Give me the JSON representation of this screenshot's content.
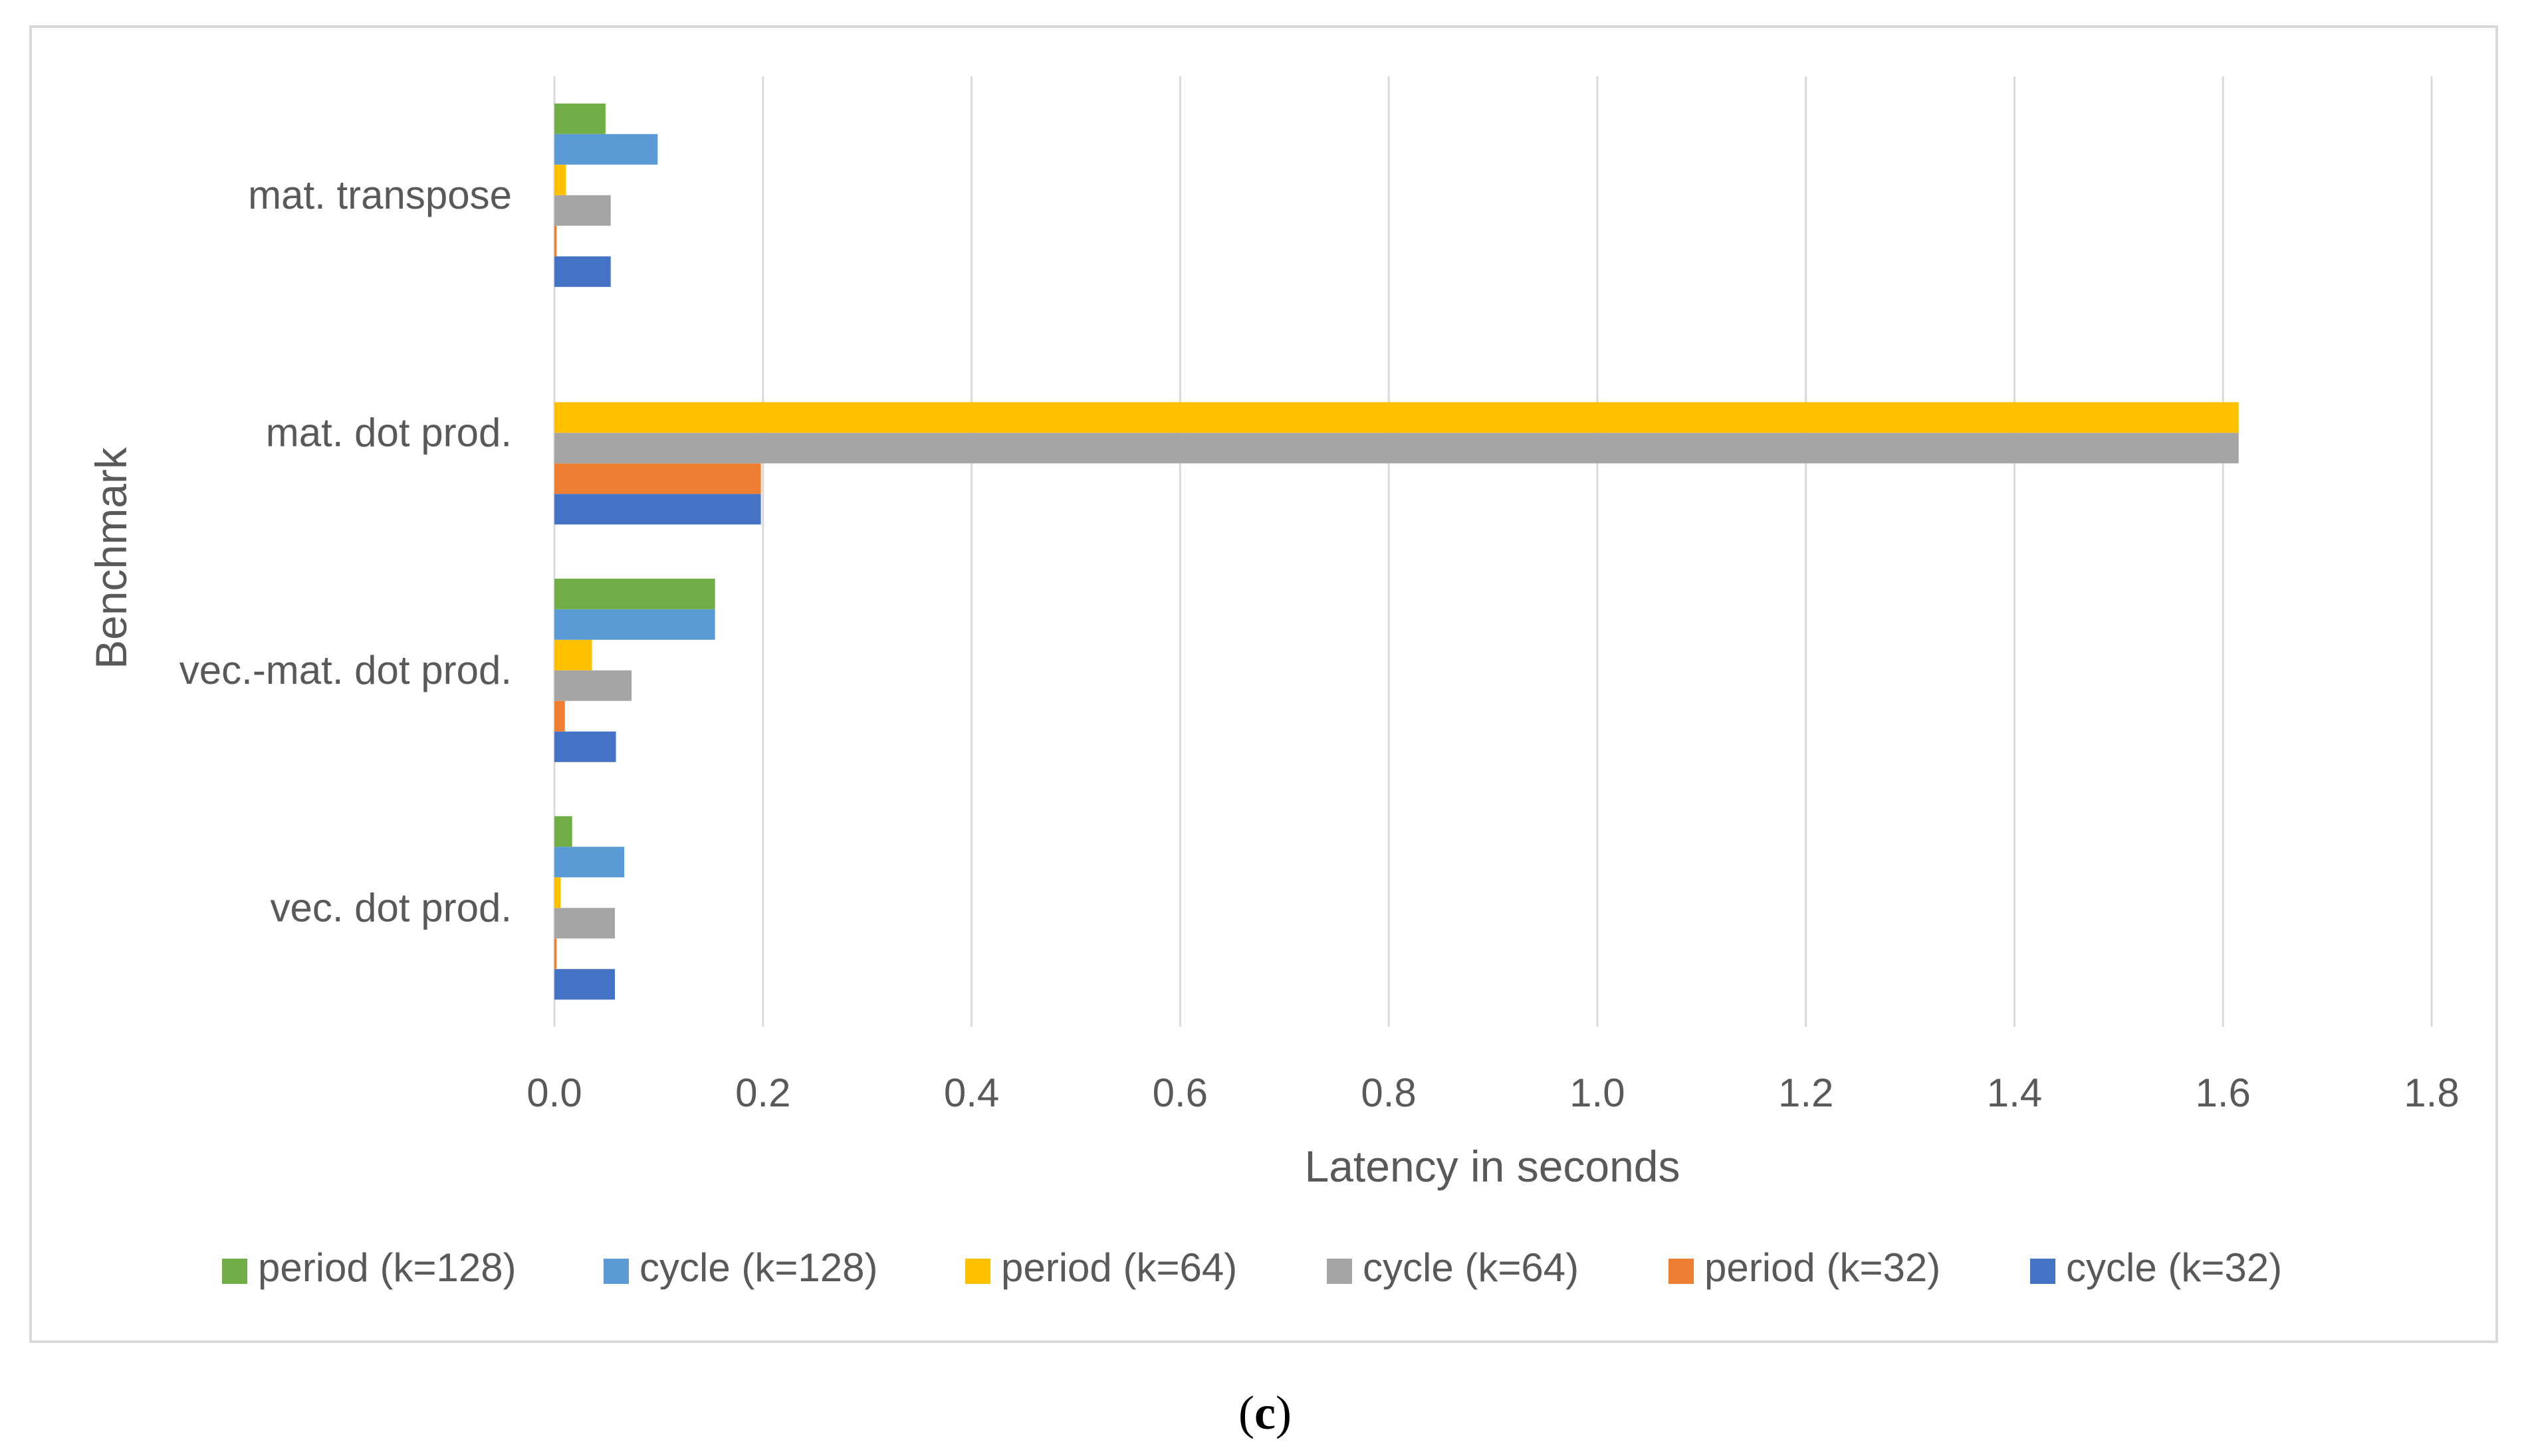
{
  "chart_data": {
    "type": "bar",
    "orientation": "horizontal",
    "title": "",
    "xlabel": "Latency in seconds",
    "ylabel": "Benchmark",
    "xlim": [
      0,
      1.8
    ],
    "x_ticks": [
      "0.0",
      "0.2",
      "0.4",
      "0.6",
      "0.8",
      "1.0",
      "1.2",
      "1.4",
      "1.6",
      "1.8"
    ],
    "x_tick_values": [
      0,
      0.2,
      0.4,
      0.6,
      0.8,
      1.0,
      1.2,
      1.4,
      1.6,
      1.8
    ],
    "grid": "vertical",
    "legend_position": "bottom",
    "categories": [
      "vec. dot prod.",
      "vec.-mat. dot prod.",
      "mat. dot prod.",
      "mat. transpose"
    ],
    "series": [
      {
        "name": "cycle (k=32)",
        "color": "#4472C4",
        "values": [
          0.058,
          0.059,
          0.198,
          0.054
        ]
      },
      {
        "name": "period (k=32)",
        "color": "#ED7D31",
        "values": [
          0.002,
          0.01,
          0.198,
          0.002
        ]
      },
      {
        "name": "cycle (k=64)",
        "color": "#A5A5A5",
        "values": [
          0.058,
          0.074,
          1.615,
          0.054
        ]
      },
      {
        "name": "period (k=64)",
        "color": "#FFC000",
        "values": [
          0.006,
          0.036,
          1.615,
          0.011
        ]
      },
      {
        "name": "cycle (k=128)",
        "color": "#5B9BD5",
        "values": [
          0.067,
          0.154,
          0,
          0.099
        ]
      },
      {
        "name": "period (k=128)",
        "color": "#70AD47",
        "values": [
          0.017,
          0.154,
          0,
          0.049
        ]
      }
    ],
    "legend_order": [
      "period (k=128)",
      "cycle (k=128)",
      "period (k=64)",
      "cycle (k=64)",
      "period (k=32)",
      "cycle (k=32)"
    ]
  },
  "caption": {
    "open": "(",
    "letter": "c",
    "close": ")"
  }
}
